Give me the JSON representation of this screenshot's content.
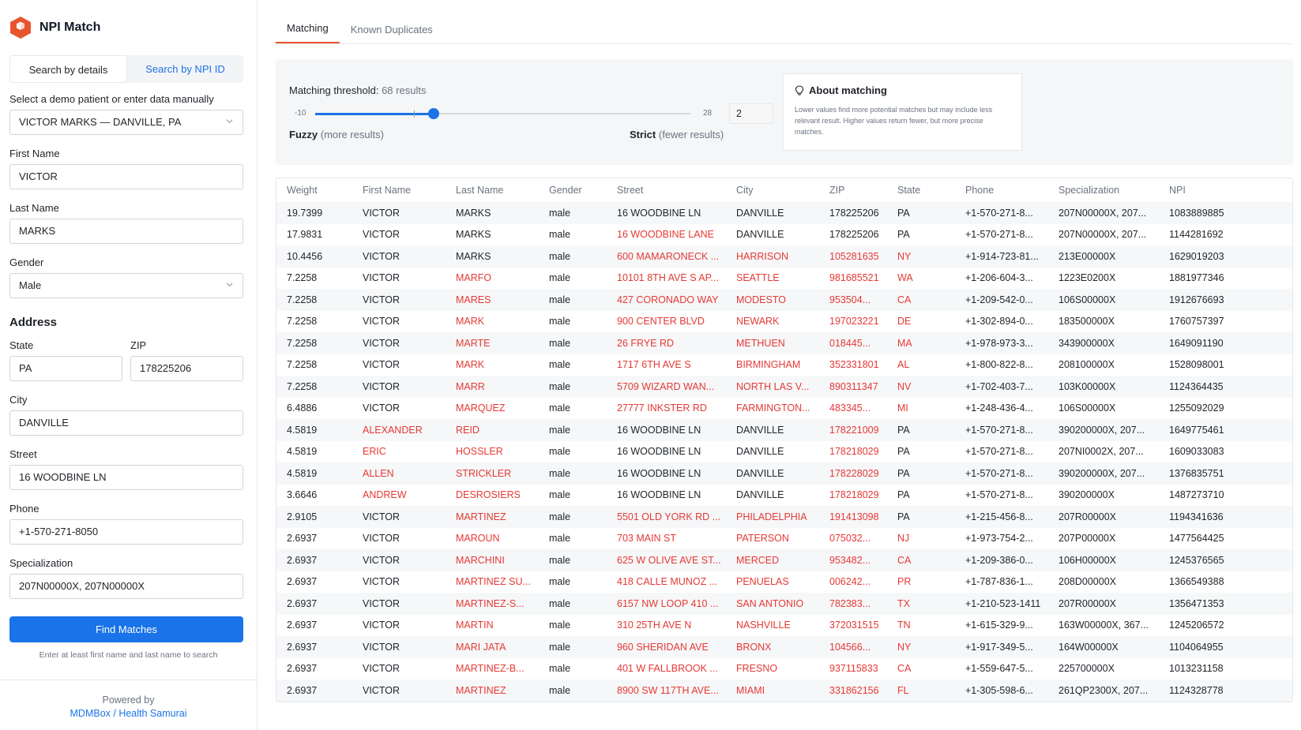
{
  "app": {
    "name": "NPI Match"
  },
  "search_mode": {
    "details_label": "Search by details",
    "npi_label": "Search by NPI ID"
  },
  "form": {
    "demo_label": "Select a demo patient or enter data manually",
    "demo_value": "VICTOR MARKS — DANVILLE, PA",
    "first_name_label": "First Name",
    "first_name": "VICTOR",
    "last_name_label": "Last Name",
    "last_name": "MARKS",
    "gender_label": "Gender",
    "gender": "Male",
    "address_title": "Address",
    "state_label": "State",
    "state": "PA",
    "zip_label": "ZIP",
    "zip": "178225206",
    "city_label": "City",
    "city": "DANVILLE",
    "street_label": "Street",
    "street": "16 WOODBINE LN",
    "phone_label": "Phone",
    "phone": "+1-570-271-8050",
    "specialization_label": "Specialization",
    "specialization": "207N00000X, 207N00000X",
    "find_label": "Find Matches",
    "hint": "Enter at least first name and last name to search"
  },
  "footer": {
    "powered": "Powered by",
    "link": "MDMBox / Health Samurai"
  },
  "tabs": {
    "matching": "Matching",
    "duplicates": "Known Duplicates"
  },
  "threshold": {
    "label": "Matching threshold:",
    "count": "68 results",
    "min_label": "-10",
    "max_label": "28",
    "min": -10,
    "max": 28,
    "value": 2,
    "marker": 0,
    "value_text": "2",
    "fuzzy": "Fuzzy",
    "fuzzy_note": "(more results)",
    "strict": "Strict",
    "strict_note": "(fewer results)"
  },
  "about": {
    "title": "About matching",
    "body": "Lower values find more potential matches but may include less relevant result. Higher values return fewer, but more precise matches."
  },
  "table": {
    "columns": [
      "Weight",
      "First Name",
      "Last Name",
      "Gender",
      "Street",
      "City",
      "ZIP",
      "State",
      "Phone",
      "Specialization",
      "NPI"
    ],
    "rows": [
      {
        "cells": [
          "19.7399",
          "VICTOR",
          "MARKS",
          "male",
          "16 WOODBINE LN",
          "DANVILLE",
          "178225206",
          "PA",
          "+1-570-271-8...",
          "207N00000X, 207...",
          "1083889885"
        ],
        "diff": []
      },
      {
        "cells": [
          "17.9831",
          "VICTOR",
          "MARKS",
          "male",
          "16 WOODBINE LANE",
          "DANVILLE",
          "178225206",
          "PA",
          "+1-570-271-8...",
          "207N00000X, 207...",
          "1144281692"
        ],
        "diff": [
          4
        ]
      },
      {
        "cells": [
          "10.4456",
          "VICTOR",
          "MARKS",
          "male",
          "600 MAMARONECK ...",
          "HARRISON",
          "105281635",
          "NY",
          "+1-914-723-81...",
          "213E00000X",
          "1629019203"
        ],
        "diff": [
          4,
          5,
          6,
          7
        ]
      },
      {
        "cells": [
          "7.2258",
          "VICTOR",
          "MARFO",
          "male",
          "10101 8TH AVE S AP...",
          "SEATTLE",
          "981685521",
          "WA",
          "+1-206-604-3...",
          "1223E0200X",
          "1881977346"
        ],
        "diff": [
          2,
          4,
          5,
          6,
          7
        ]
      },
      {
        "cells": [
          "7.2258",
          "VICTOR",
          "MARES",
          "male",
          "427 CORONADO WAY",
          "MODESTO",
          "953504...",
          "CA",
          "+1-209-542-0...",
          "106S00000X",
          "1912676693"
        ],
        "diff": [
          2,
          4,
          5,
          6,
          7
        ]
      },
      {
        "cells": [
          "7.2258",
          "VICTOR",
          "MARK",
          "male",
          "900 CENTER BLVD",
          "NEWARK",
          "197023221",
          "DE",
          "+1-302-894-0...",
          "183500000X",
          "1760757397"
        ],
        "diff": [
          2,
          4,
          5,
          6,
          7
        ]
      },
      {
        "cells": [
          "7.2258",
          "VICTOR",
          "MARTE",
          "male",
          "26 FRYE RD",
          "METHUEN",
          "018445...",
          "MA",
          "+1-978-973-3...",
          "343900000X",
          "1649091190"
        ],
        "diff": [
          2,
          4,
          5,
          6,
          7
        ]
      },
      {
        "cells": [
          "7.2258",
          "VICTOR",
          "MARK",
          "male",
          "1717 6TH AVE S",
          "BIRMINGHAM",
          "352331801",
          "AL",
          "+1-800-822-8...",
          "208100000X",
          "1528098001"
        ],
        "diff": [
          2,
          4,
          5,
          6,
          7
        ]
      },
      {
        "cells": [
          "7.2258",
          "VICTOR",
          "MARR",
          "male",
          "5709 WIZARD WAN...",
          "NORTH LAS V...",
          "890311347",
          "NV",
          "+1-702-403-7...",
          "103K00000X",
          "1124364435"
        ],
        "diff": [
          2,
          4,
          5,
          6,
          7
        ]
      },
      {
        "cells": [
          "6.4886",
          "VICTOR",
          "MARQUEZ",
          "male",
          "27777 INKSTER RD",
          "FARMINGTON...",
          "483345...",
          "MI",
          "+1-248-436-4...",
          "106S00000X",
          "1255092029"
        ],
        "diff": [
          2,
          4,
          5,
          6,
          7
        ]
      },
      {
        "cells": [
          "4.5819",
          "ALEXANDER",
          "REID",
          "male",
          "16 WOODBINE LN",
          "DANVILLE",
          "178221009",
          "PA",
          "+1-570-271-8...",
          "390200000X, 207...",
          "1649775461"
        ],
        "diff": [
          1,
          2,
          6
        ]
      },
      {
        "cells": [
          "4.5819",
          "ERIC",
          "HOSSLER",
          "male",
          "16 WOODBINE LN",
          "DANVILLE",
          "178218029",
          "PA",
          "+1-570-271-8...",
          "207NI0002X, 207...",
          "1609033083"
        ],
        "diff": [
          1,
          2,
          6
        ]
      },
      {
        "cells": [
          "4.5819",
          "ALLEN",
          "STRICKLER",
          "male",
          "16 WOODBINE LN",
          "DANVILLE",
          "178228029",
          "PA",
          "+1-570-271-8...",
          "390200000X, 207...",
          "1376835751"
        ],
        "diff": [
          1,
          2,
          6
        ]
      },
      {
        "cells": [
          "3.6646",
          "ANDREW",
          "DESROSIERS",
          "male",
          "16 WOODBINE LN",
          "DANVILLE",
          "178218029",
          "PA",
          "+1-570-271-8...",
          "390200000X",
          "1487273710"
        ],
        "diff": [
          1,
          2,
          6
        ]
      },
      {
        "cells": [
          "2.9105",
          "VICTOR",
          "MARTINEZ",
          "male",
          "5501 OLD YORK RD ...",
          "PHILADELPHIA",
          "191413098",
          "PA",
          "+1-215-456-8...",
          "207R00000X",
          "1194341636"
        ],
        "diff": [
          2,
          4,
          5,
          6
        ]
      },
      {
        "cells": [
          "2.6937",
          "VICTOR",
          "MAROUN",
          "male",
          "703 MAIN ST",
          "PATERSON",
          "075032...",
          "NJ",
          "+1-973-754-2...",
          "207P00000X",
          "1477564425"
        ],
        "diff": [
          2,
          4,
          5,
          6,
          7
        ]
      },
      {
        "cells": [
          "2.6937",
          "VICTOR",
          "MARCHINI",
          "male",
          "625 W OLIVE AVE ST...",
          "MERCED",
          "953482...",
          "CA",
          "+1-209-386-0...",
          "106H00000X",
          "1245376565"
        ],
        "diff": [
          2,
          4,
          5,
          6,
          7
        ]
      },
      {
        "cells": [
          "2.6937",
          "VICTOR",
          "MARTINEZ SU...",
          "male",
          "418 CALLE MUNOZ ...",
          "PENUELAS",
          "006242...",
          "PR",
          "+1-787-836-1...",
          "208D00000X",
          "1366549388"
        ],
        "diff": [
          2,
          4,
          5,
          6,
          7
        ]
      },
      {
        "cells": [
          "2.6937",
          "VICTOR",
          "MARTINEZ-S...",
          "male",
          "6157 NW LOOP 410 ...",
          "SAN ANTONIO",
          "782383...",
          "TX",
          "+1-210-523-1411",
          "207R00000X",
          "1356471353"
        ],
        "diff": [
          2,
          4,
          5,
          6,
          7
        ]
      },
      {
        "cells": [
          "2.6937",
          "VICTOR",
          "MARTIN",
          "male",
          "310 25TH AVE N",
          "NASHVILLE",
          "372031515",
          "TN",
          "+1-615-329-9...",
          "163W00000X, 367...",
          "1245206572"
        ],
        "diff": [
          2,
          4,
          5,
          6,
          7
        ]
      },
      {
        "cells": [
          "2.6937",
          "VICTOR",
          "MARI JATA",
          "male",
          "960 SHERIDAN AVE",
          "BRONX",
          "104566...",
          "NY",
          "+1-917-349-5...",
          "164W00000X",
          "1104064955"
        ],
        "diff": [
          2,
          4,
          5,
          6,
          7
        ]
      },
      {
        "cells": [
          "2.6937",
          "VICTOR",
          "MARTINEZ-B...",
          "male",
          "401 W FALLBROOK ...",
          "FRESNO",
          "937115833",
          "CA",
          "+1-559-647-5...",
          "225700000X",
          "1013231158"
        ],
        "diff": [
          2,
          4,
          5,
          6,
          7
        ]
      },
      {
        "cells": [
          "2.6937",
          "VICTOR",
          "MARTINEZ",
          "male",
          "8900 SW 117TH AVE...",
          "MIAMI",
          "331862156",
          "FL",
          "+1-305-598-6...",
          "261QP2300X, 207...",
          "1124328778"
        ],
        "diff": [
          2,
          4,
          5,
          6,
          7
        ]
      }
    ]
  },
  "colors": {
    "accent": "#1a73e8",
    "brand": "#e8542e",
    "diff": "#e53935"
  }
}
